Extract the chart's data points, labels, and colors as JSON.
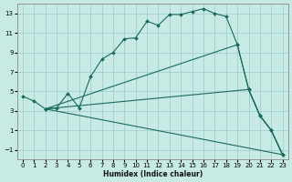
{
  "xlabel": "Humidex (Indice chaleur)",
  "background_color": "#c8eae5",
  "grid_color": "#a0d0cc",
  "line_color": "#1a6b5a",
  "ylim": [
    -2,
    14
  ],
  "xlim": [
    -0.5,
    23.5
  ],
  "yticks": [
    -1,
    1,
    3,
    5,
    7,
    9,
    11,
    13
  ],
  "xticks": [
    0,
    1,
    2,
    3,
    4,
    5,
    6,
    7,
    8,
    9,
    10,
    11,
    12,
    13,
    14,
    15,
    16,
    17,
    18,
    19,
    20,
    21,
    22,
    23
  ],
  "line1_x": [
    0,
    1,
    2,
    3,
    4,
    5,
    6,
    7,
    8,
    9,
    10,
    11,
    12,
    13,
    14,
    15,
    16,
    17,
    18,
    19,
    20,
    21,
    22,
    23
  ],
  "line1_y": [
    4.5,
    4.0,
    3.2,
    3.3,
    4.8,
    3.3,
    6.5,
    8.3,
    9.0,
    10.4,
    10.5,
    12.2,
    11.8,
    12.9,
    12.9,
    13.2,
    13.5,
    13.0,
    12.7,
    9.8,
    5.2,
    2.5,
    1.0,
    -1.5
  ],
  "line2_x": [
    2,
    19,
    20,
    21,
    22,
    23
  ],
  "line2_y": [
    3.2,
    9.8,
    5.2,
    2.5,
    1.0,
    -1.5
  ],
  "line3_x": [
    2,
    20,
    21,
    22,
    23
  ],
  "line3_y": [
    3.2,
    5.2,
    2.5,
    1.0,
    -1.5
  ],
  "line4_x": [
    2,
    23
  ],
  "line4_y": [
    3.2,
    -1.5
  ]
}
